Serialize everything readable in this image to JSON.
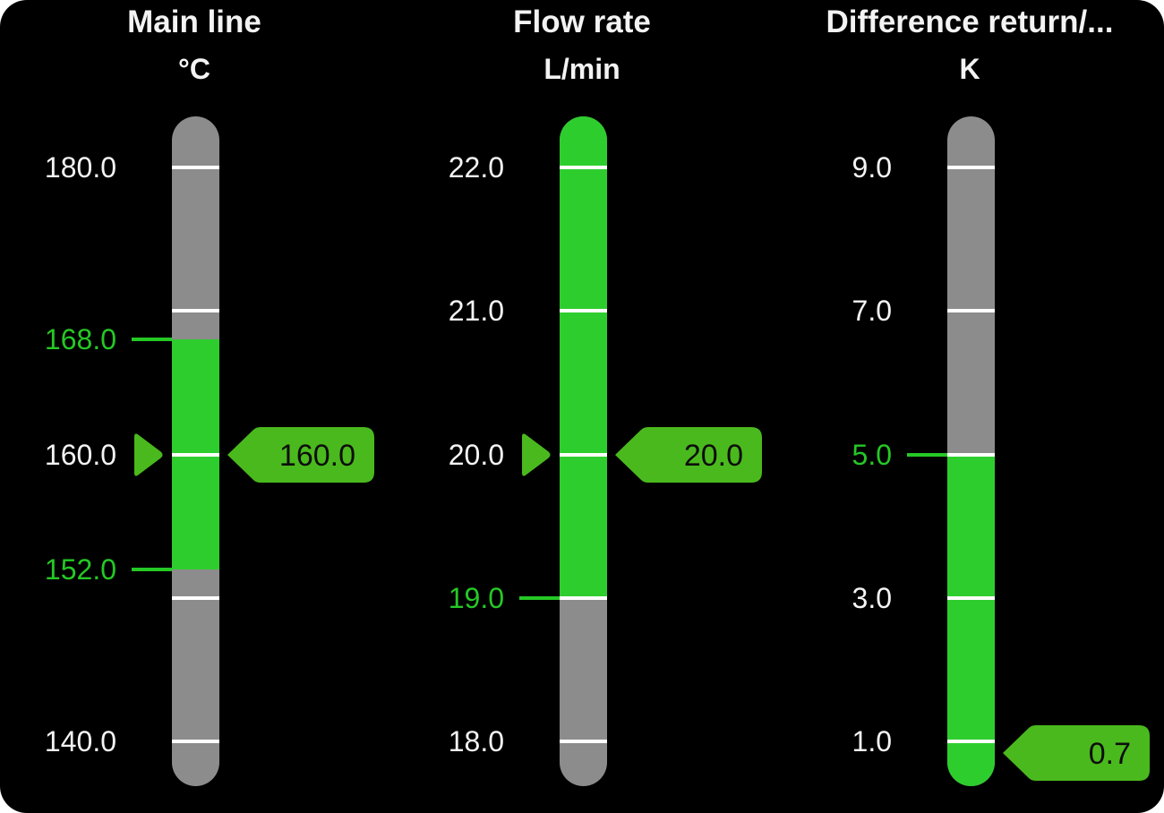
{
  "panel": {
    "background": "#000000",
    "page_background": "#ffffff"
  },
  "colors": {
    "bar_gray": "#8c8c8c",
    "zone_green": "#2ecd2e",
    "tag_green": "#4ab91d",
    "label_white": "#f4f4f4",
    "label_green": "#25c825",
    "tick_white": "#ffffff",
    "tag_text": "#0d0d0d"
  },
  "chart_data": {
    "type": "bar",
    "subtype": "vertical-gauge-bars",
    "gauges": [
      {
        "title": "Main line",
        "unit": "°C",
        "axis_min": 140.0,
        "axis_max": 180.0,
        "ticks": [
          {
            "value": 180,
            "label": "180.0"
          },
          {
            "value": 170,
            "label": ""
          },
          {
            "value": 160,
            "label": "160.0"
          },
          {
            "value": 150,
            "label": ""
          },
          {
            "value": 140,
            "label": "140.0"
          }
        ],
        "limits": [
          {
            "value": 168,
            "label": "168.0"
          },
          {
            "value": 152,
            "label": "152.0"
          }
        ],
        "green_zone": {
          "from": 152,
          "to": 168
        },
        "value": 160.0,
        "value_label": "160.0",
        "show_left_pointer": true
      },
      {
        "title": "Flow rate",
        "unit": "L/min",
        "axis_min": 18.0,
        "axis_max": 22.0,
        "ticks": [
          {
            "value": 22,
            "label": "22.0"
          },
          {
            "value": 21,
            "label": "21.0"
          },
          {
            "value": 20,
            "label": "20.0"
          },
          {
            "value": 19,
            "label": ""
          },
          {
            "value": 18,
            "label": "18.0"
          }
        ],
        "limits": [
          {
            "value": 19,
            "label": "19.0"
          }
        ],
        "green_zone": {
          "from": 19,
          "to": "max"
        },
        "value": 20.0,
        "value_label": "20.0",
        "show_left_pointer": true
      },
      {
        "title": "Difference return/...",
        "unit": "K",
        "axis_min": 1.0,
        "axis_max": 9.0,
        "ticks": [
          {
            "value": 9,
            "label": "9.0"
          },
          {
            "value": 7,
            "label": "7.0"
          },
          {
            "value": 5,
            "label": ""
          },
          {
            "value": 3,
            "label": "3.0"
          },
          {
            "value": 1,
            "label": "1.0"
          }
        ],
        "limits": [
          {
            "value": 5,
            "label": "5.0"
          }
        ],
        "green_zone": {
          "from": "min",
          "to": 5
        },
        "value": 0.7,
        "value_label": "0.7",
        "show_left_pointer": false
      }
    ]
  }
}
